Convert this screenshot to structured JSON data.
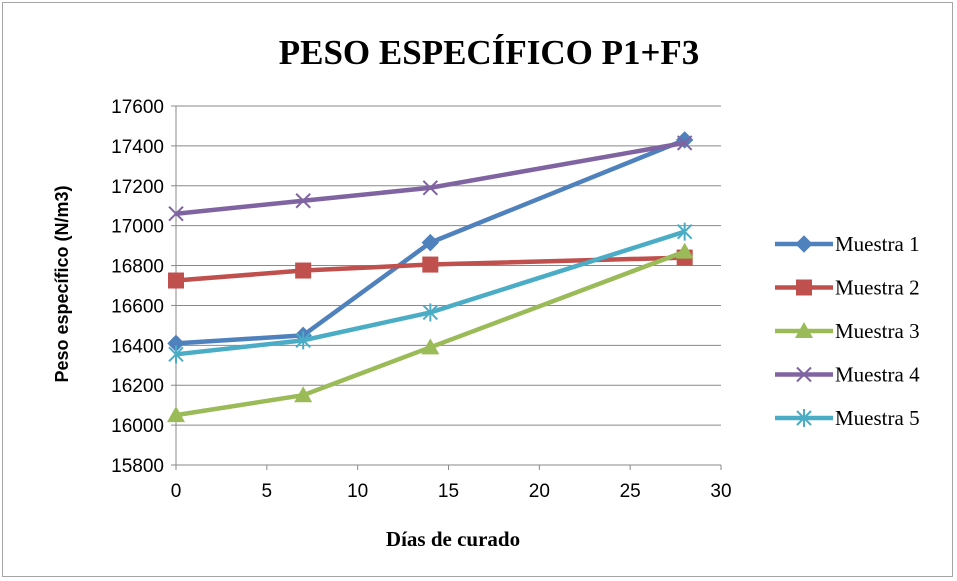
{
  "chart_data": {
    "type": "line",
    "title": "PESO ESPECÍFICO P1+F3",
    "xlabel": "Días de curado",
    "ylabel": "Peso específico (N/m3)",
    "xlim": [
      0,
      30
    ],
    "ylim": [
      15800,
      17600
    ],
    "xticks": [
      0,
      5,
      10,
      15,
      20,
      25,
      30
    ],
    "yticks": [
      15800,
      16000,
      16200,
      16400,
      16600,
      16800,
      17000,
      17200,
      17400,
      17600
    ],
    "grid": true,
    "legend_position": "right",
    "x": [
      0,
      7,
      14,
      28
    ],
    "series": [
      {
        "name": "Muestra 1",
        "color": "#4f81bd",
        "marker": "diamond",
        "values": [
          16410,
          16450,
          16915,
          17430
        ]
      },
      {
        "name": "Muestra 2",
        "color": "#c0504d",
        "marker": "square",
        "values": [
          16725,
          16775,
          16805,
          16840
        ]
      },
      {
        "name": "Muestra 3",
        "color": "#9bbb59",
        "marker": "triangle",
        "values": [
          16050,
          16150,
          16390,
          16870
        ]
      },
      {
        "name": "Muestra 4",
        "color": "#8064a2",
        "marker": "x",
        "values": [
          17060,
          17125,
          17190,
          17415
        ]
      },
      {
        "name": "Muestra 5",
        "color": "#4bacc6",
        "marker": "star",
        "values": [
          16355,
          16425,
          16565,
          16970
        ]
      }
    ]
  }
}
